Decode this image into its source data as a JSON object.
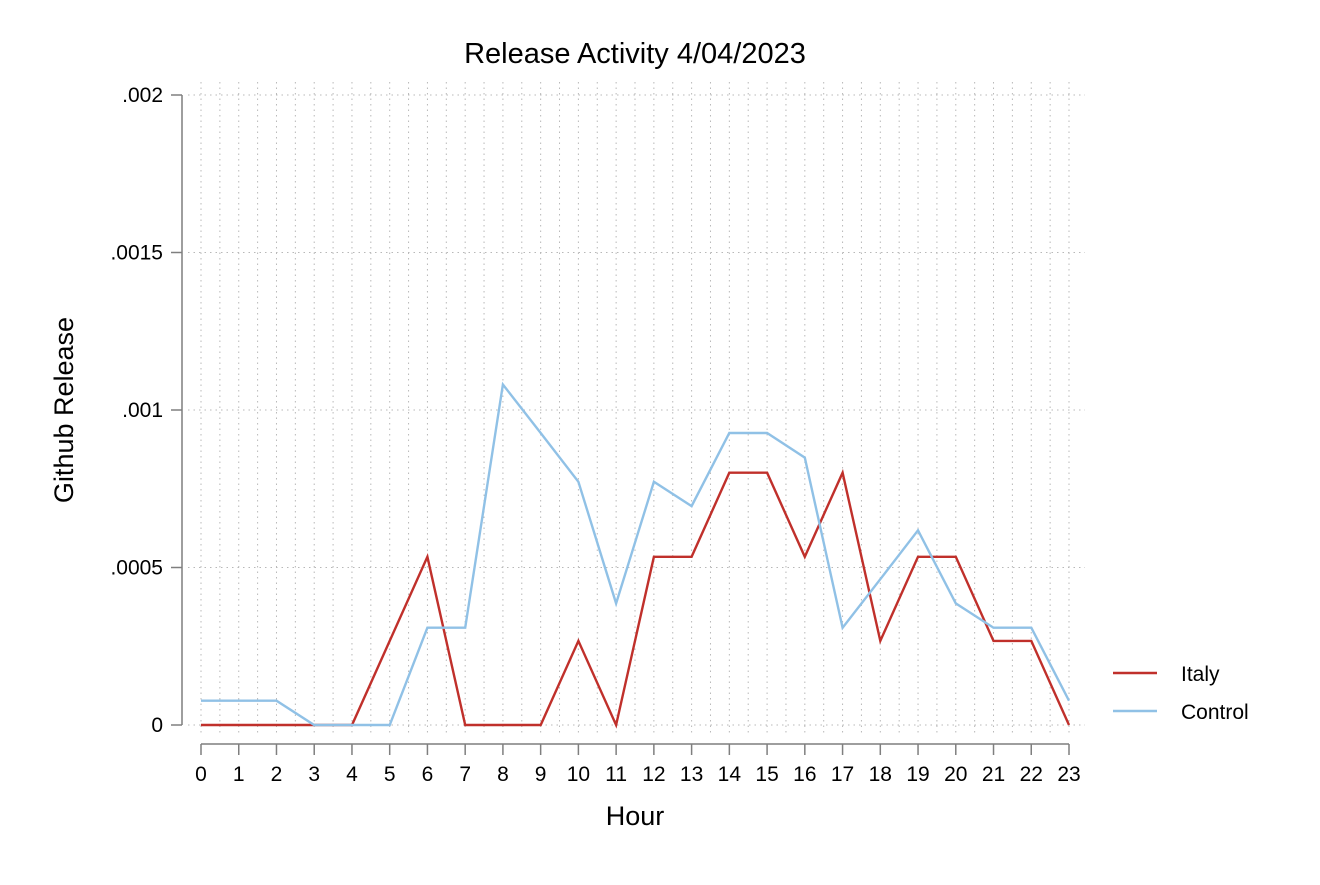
{
  "chart_data": {
    "type": "line",
    "title": "Release Activity 4/04/2023",
    "xlabel": "Hour",
    "ylabel": "Github Release",
    "x": [
      0,
      1,
      2,
      3,
      4,
      5,
      6,
      7,
      8,
      9,
      10,
      11,
      12,
      13,
      14,
      15,
      16,
      17,
      18,
      19,
      20,
      21,
      22,
      23
    ],
    "x_tick_labels": [
      "0",
      "1",
      "2",
      "3",
      "4",
      "5",
      "6",
      "7",
      "8",
      "9",
      "10",
      "11",
      "12",
      "13",
      "14",
      "15",
      "16",
      "17",
      "18",
      "19",
      "20",
      "21",
      "22",
      "23"
    ],
    "xlim": [
      0,
      23
    ],
    "ylim": [
      0,
      0.002
    ],
    "y_ticks": [
      0,
      0.0005,
      0.001,
      0.0015,
      0.002
    ],
    "y_tick_labels": [
      "0",
      ".0005",
      ".001",
      ".0015",
      ".002"
    ],
    "grid": true,
    "legend_position": "right",
    "series": [
      {
        "name": "Italy",
        "color": "#c0302b",
        "values": [
          0,
          0,
          0,
          0,
          0,
          0.000267,
          0.000534,
          0,
          0,
          0,
          0.000267,
          0,
          0.000534,
          0.000534,
          0.000801,
          0.000801,
          0.000534,
          0.000801,
          0.000267,
          0.000534,
          0.000534,
          0.000267,
          0.000267,
          0
        ]
      },
      {
        "name": "Control",
        "color": "#90c1e6",
        "values": [
          7.7e-05,
          7.7e-05,
          7.7e-05,
          0,
          0,
          0,
          0.000309,
          0.000309,
          0.001081,
          0.000927,
          0.000772,
          0.000386,
          0.000772,
          0.000695,
          0.000927,
          0.000927,
          0.000849,
          0.000309,
          0.000463,
          0.000618,
          0.000386,
          0.000309,
          0.000309,
          7.7e-05
        ]
      }
    ]
  }
}
